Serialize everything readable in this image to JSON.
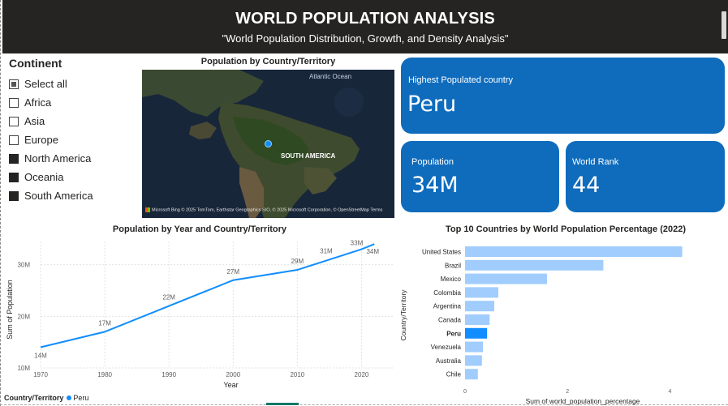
{
  "header": {
    "title": "WORLD POPULATION ANALYSIS",
    "subtitle": "\"World Population Distribution, Growth, and Density Analysis\""
  },
  "slicer": {
    "title": "Continent",
    "options": [
      {
        "label": "Select all",
        "state": "partial"
      },
      {
        "label": "Africa",
        "state": "unchecked"
      },
      {
        "label": "Asia",
        "state": "unchecked"
      },
      {
        "label": "Europe",
        "state": "unchecked"
      },
      {
        "label": "North America",
        "state": "checked"
      },
      {
        "label": "Oceania",
        "state": "checked"
      },
      {
        "label": "South America",
        "state": "checked"
      }
    ]
  },
  "map": {
    "title": "Population by Country/Territory",
    "ocean_label": "Atlantic Ocean",
    "region_label": "SOUTH AMERICA",
    "attribution": "Microsoft Bing  © 2025 TomTom, Earthstar Geographics SIO, © 2025 Microsoft Corporation, © OpenStreetMap   Terms"
  },
  "cards": {
    "top": {
      "label": "Highest Populated country",
      "value": "Peru"
    },
    "population": {
      "label": "Population",
      "value": "34M"
    },
    "rank": {
      "label": "World Rank",
      "value": "44"
    }
  },
  "colors": {
    "header_bg": "#252423",
    "card_bg": "#0f6cbd",
    "accent": "#118dff",
    "bar_light": "#a0cdfd",
    "bar_highlight": "#118dff"
  },
  "chart_data": [
    {
      "type": "line",
      "title": "Population by Year and Country/Territory",
      "xlabel": "Year",
      "ylabel": "Sum of Population",
      "x": [
        1970,
        1980,
        1990,
        2000,
        2010,
        2015,
        2020,
        2022
      ],
      "series": [
        {
          "name": "Peru",
          "values": [
            14,
            17,
            22,
            27,
            29,
            31,
            33,
            34
          ]
        }
      ],
      "data_labels": [
        "14M",
        "17M",
        "22M",
        "27M",
        "29M",
        "31M",
        "33M",
        "34M"
      ],
      "xticks": [
        "1970",
        "1980",
        "1990",
        "2000",
        "2010",
        "2020"
      ],
      "yticks": [
        "10M",
        "20M",
        "30M"
      ],
      "ylim": [
        10,
        34.5
      ],
      "xlim": [
        1970,
        2025
      ],
      "grid": true,
      "legend_title": "Country/Territory",
      "legend_position": "bottom-left"
    },
    {
      "type": "bar",
      "orientation": "horizontal",
      "title": "Top 10 Countries by World Population Percentage (2022)",
      "xlabel": "Sum of world_population_percentage",
      "ylabel": "Country/Territory",
      "categories": [
        "United States",
        "Brazil",
        "Mexico",
        "Colombia",
        "Argentina",
        "Canada",
        "Peru",
        "Venezuela",
        "Australia",
        "Chile"
      ],
      "values": [
        4.24,
        2.7,
        1.6,
        0.65,
        0.57,
        0.48,
        0.43,
        0.35,
        0.33,
        0.25
      ],
      "highlight": "Peru",
      "xticks": [
        "0",
        "2",
        "4"
      ],
      "xlim": [
        0,
        4.5
      ]
    }
  ]
}
